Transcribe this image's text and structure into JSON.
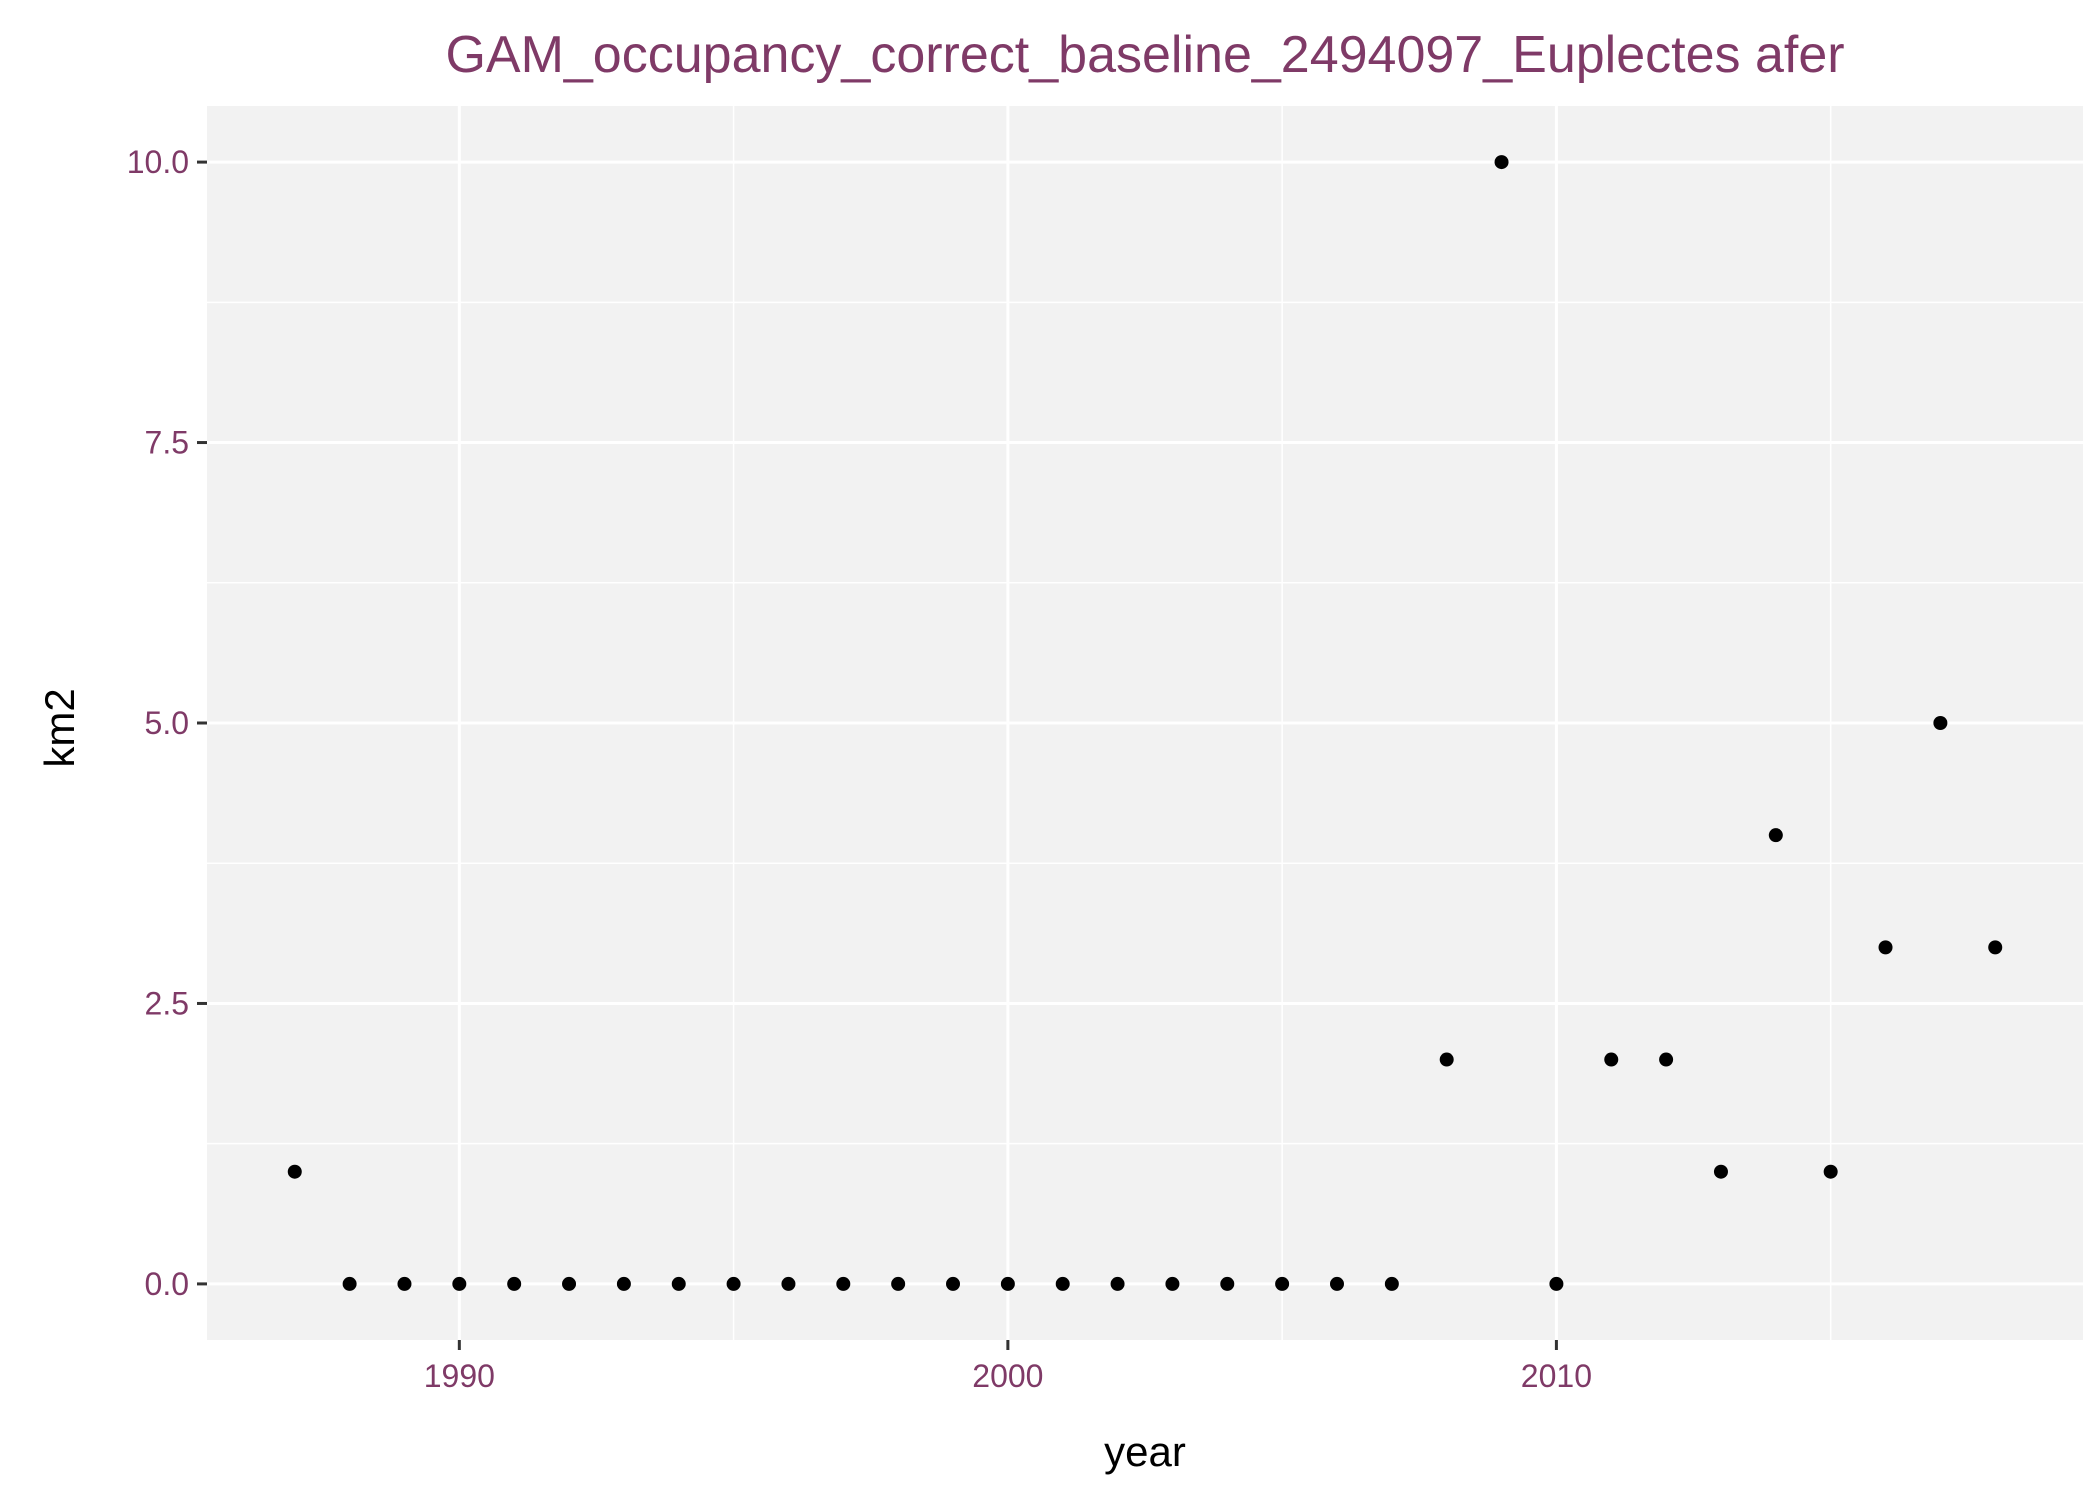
{
  "chart_data": {
    "type": "scatter",
    "title": "GAM_occupancy_correct_baseline_2494097_Euplectes afer",
    "xlabel": "year",
    "ylabel": "km2",
    "xlim": [
      1985.4,
      2019.6
    ],
    "ylim": [
      -0.5,
      10.5
    ],
    "x_ticks": [
      1990,
      2000,
      2010
    ],
    "x_tick_labels": [
      "1990",
      "2000",
      "2010"
    ],
    "x_minor_ticks": [
      1985,
      1995,
      2005,
      2015
    ],
    "y_ticks": [
      0,
      2.5,
      5,
      7.5,
      10
    ],
    "y_tick_labels": [
      "0.0",
      "2.5",
      "5.0",
      "7.5",
      "10.0"
    ],
    "y_minor_ticks": [
      1.25,
      3.75,
      6.25,
      8.75
    ],
    "grid": true,
    "legend": "none",
    "colors": {
      "panel_background": "#f2f2f2",
      "grid": "#ffffff",
      "title": "#7f3a67",
      "tick_label": "#7f3a67",
      "tick_mark": "#333333",
      "point": "#000000"
    },
    "series": [
      {
        "x": [
          1987,
          1988,
          1989,
          1990,
          1991,
          1992,
          1993,
          1994,
          1995,
          1996,
          1997,
          1998,
          1999,
          2000,
          2001,
          2002,
          2003,
          2004,
          2005,
          2006,
          2007,
          2008,
          2009,
          2010,
          2011,
          2012,
          2013,
          2014,
          2015,
          2016,
          2017,
          2018
        ],
        "y": [
          1,
          0,
          0,
          0,
          0,
          0,
          0,
          0,
          0,
          0,
          0,
          0,
          0,
          0,
          0,
          0,
          0,
          0,
          0,
          0,
          0,
          2,
          10,
          0,
          2,
          2,
          1,
          4,
          1,
          3,
          5,
          3
        ]
      }
    ]
  }
}
